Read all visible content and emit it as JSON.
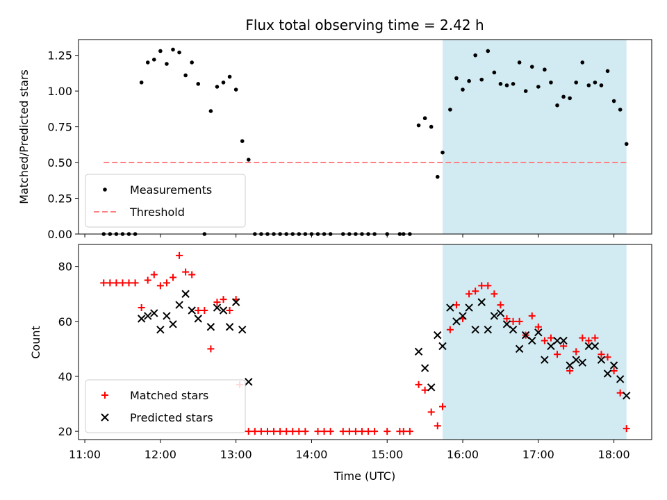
{
  "chart_data": {
    "title": "Flux total observing time = 2.42 h",
    "xlabel": "Time (UTC)",
    "x_ticks": [
      "11:00",
      "12:00",
      "13:00",
      "14:00",
      "15:00",
      "16:00",
      "17:00",
      "18:00"
    ],
    "x_range": [
      "10:55",
      "18:30"
    ],
    "highlight_span": [
      "15:44",
      "18:10"
    ],
    "colors": {
      "highlight": "#add8e6",
      "matched": "#ff0000",
      "predicted": "#000000",
      "threshold": "#ff8080"
    },
    "panels": [
      {
        "type": "scatter",
        "ylabel": "Matched/Predicted stars",
        "ylim": [
          0,
          1.36
        ],
        "y_ticks": [
          "0.00",
          "0.25",
          "0.50",
          "0.75",
          "1.00",
          "1.25"
        ],
        "y_tick_values": [
          0,
          0.25,
          0.5,
          0.75,
          1.0,
          1.25
        ],
        "legend_position": "lower-left",
        "threshold": {
          "name": "Threshold",
          "value": 0.5,
          "x_start": "11:15",
          "x_end": "18:10"
        },
        "series": [
          {
            "name": "Measurements",
            "marker": "dot",
            "points": [
              [
                "11:15",
                0
              ],
              [
                "11:20",
                0
              ],
              [
                "11:25",
                0
              ],
              [
                "11:30",
                0
              ],
              [
                "11:35",
                0
              ],
              [
                "11:40",
                0
              ],
              [
                "11:45",
                1.06
              ],
              [
                "11:50",
                1.2
              ],
              [
                "11:55",
                1.22
              ],
              [
                "12:00",
                1.28
              ],
              [
                "12:05",
                1.19
              ],
              [
                "12:10",
                1.29
              ],
              [
                "12:15",
                1.27
              ],
              [
                "12:20",
                1.11
              ],
              [
                "12:25",
                1.2
              ],
              [
                "12:30",
                1.05
              ],
              [
                "12:35",
                0
              ],
              [
                "12:40",
                0.86
              ],
              [
                "12:45",
                1.03
              ],
              [
                "12:50",
                1.06
              ],
              [
                "12:55",
                1.1
              ],
              [
                "13:00",
                1.01
              ],
              [
                "13:05",
                0.65
              ],
              [
                "13:10",
                0.52
              ],
              [
                "13:15",
                0
              ],
              [
                "13:20",
                0
              ],
              [
                "13:25",
                0
              ],
              [
                "13:30",
                0
              ],
              [
                "13:35",
                0
              ],
              [
                "13:40",
                0
              ],
              [
                "13:45",
                0
              ],
              [
                "13:50",
                0
              ],
              [
                "13:55",
                0
              ],
              [
                "14:00",
                0
              ],
              [
                "14:05",
                0
              ],
              [
                "14:10",
                0
              ],
              [
                "14:15",
                0
              ],
              [
                "14:25",
                0
              ],
              [
                "14:30",
                0
              ],
              [
                "14:35",
                0
              ],
              [
                "14:40",
                0
              ],
              [
                "14:45",
                0
              ],
              [
                "14:50",
                0
              ],
              [
                "15:00",
                0
              ],
              [
                "15:10",
                0
              ],
              [
                "15:13",
                0
              ],
              [
                "15:18",
                0
              ],
              [
                "15:25",
                0.76
              ],
              [
                "15:30",
                0.81
              ],
              [
                "15:35",
                0.75
              ],
              [
                "15:40",
                0.4
              ],
              [
                "15:44",
                0.57
              ],
              [
                "15:50",
                0.87
              ],
              [
                "15:55",
                1.09
              ],
              [
                "16:00",
                1.01
              ],
              [
                "16:05",
                1.07
              ],
              [
                "16:10",
                1.25
              ],
              [
                "16:15",
                1.08
              ],
              [
                "16:20",
                1.28
              ],
              [
                "16:25",
                1.13
              ],
              [
                "16:30",
                1.05
              ],
              [
                "16:35",
                1.04
              ],
              [
                "16:40",
                1.05
              ],
              [
                "16:45",
                1.2
              ],
              [
                "16:50",
                1.0
              ],
              [
                "16:55",
                1.17
              ],
              [
                "17:00",
                1.03
              ],
              [
                "17:05",
                1.15
              ],
              [
                "17:10",
                1.06
              ],
              [
                "17:15",
                0.9
              ],
              [
                "17:20",
                0.96
              ],
              [
                "17:25",
                0.95
              ],
              [
                "17:30",
                1.06
              ],
              [
                "17:35",
                1.2
              ],
              [
                "17:40",
                1.04
              ],
              [
                "17:45",
                1.06
              ],
              [
                "17:50",
                1.04
              ],
              [
                "17:55",
                1.14
              ],
              [
                "18:00",
                0.93
              ],
              [
                "18:05",
                0.87
              ],
              [
                "18:10",
                0.63
              ]
            ]
          }
        ]
      },
      {
        "type": "scatter",
        "ylabel": "Count",
        "ylim": [
          17,
          88
        ],
        "y_ticks": [
          "20",
          "40",
          "60",
          "80"
        ],
        "y_tick_values": [
          20,
          40,
          60,
          80
        ],
        "legend_position": "lower-left",
        "series": [
          {
            "name": "Matched stars",
            "marker": "plus",
            "points": [
              [
                "11:15",
                74
              ],
              [
                "11:20",
                74
              ],
              [
                "11:25",
                74
              ],
              [
                "11:30",
                74
              ],
              [
                "11:35",
                74
              ],
              [
                "11:40",
                74
              ],
              [
                "11:45",
                65
              ],
              [
                "11:50",
                75
              ],
              [
                "11:55",
                77
              ],
              [
                "12:00",
                73
              ],
              [
                "12:05",
                74
              ],
              [
                "12:10",
                76
              ],
              [
                "12:15",
                84
              ],
              [
                "12:20",
                78
              ],
              [
                "12:25",
                77
              ],
              [
                "12:30",
                64
              ],
              [
                "12:35",
                64
              ],
              [
                "12:40",
                50
              ],
              [
                "12:45",
                67
              ],
              [
                "12:50",
                68
              ],
              [
                "12:55",
                64
              ],
              [
                "13:00",
                68
              ],
              [
                "13:03",
                37
              ],
              [
                "13:10",
                20
              ],
              [
                "13:15",
                20
              ],
              [
                "13:20",
                20
              ],
              [
                "13:25",
                20
              ],
              [
                "13:30",
                20
              ],
              [
                "13:35",
                20
              ],
              [
                "13:40",
                20
              ],
              [
                "13:45",
                20
              ],
              [
                "13:50",
                20
              ],
              [
                "13:55",
                20
              ],
              [
                "14:05",
                20
              ],
              [
                "14:10",
                20
              ],
              [
                "14:15",
                20
              ],
              [
                "14:25",
                20
              ],
              [
                "14:30",
                20
              ],
              [
                "14:35",
                20
              ],
              [
                "14:40",
                20
              ],
              [
                "14:45",
                20
              ],
              [
                "14:50",
                20
              ],
              [
                "15:00",
                20
              ],
              [
                "15:10",
                20
              ],
              [
                "15:13",
                20
              ],
              [
                "15:18",
                20
              ],
              [
                "15:25",
                37
              ],
              [
                "15:30",
                35
              ],
              [
                "15:35",
                27
              ],
              [
                "15:40",
                22
              ],
              [
                "15:44",
                29
              ],
              [
                "15:50",
                57
              ],
              [
                "15:55",
                66
              ],
              [
                "16:00",
                61
              ],
              [
                "16:05",
                70
              ],
              [
                "16:10",
                71
              ],
              [
                "16:15",
                73
              ],
              [
                "16:20",
                73
              ],
              [
                "16:25",
                70
              ],
              [
                "16:30",
                66
              ],
              [
                "16:35",
                61
              ],
              [
                "16:40",
                60
              ],
              [
                "16:45",
                60
              ],
              [
                "16:50",
                55
              ],
              [
                "16:55",
                62
              ],
              [
                "17:00",
                58
              ],
              [
                "17:05",
                53
              ],
              [
                "17:10",
                54
              ],
              [
                "17:15",
                48
              ],
              [
                "17:20",
                51
              ],
              [
                "17:25",
                42
              ],
              [
                "17:30",
                49
              ],
              [
                "17:35",
                54
              ],
              [
                "17:40",
                53
              ],
              [
                "17:45",
                54
              ],
              [
                "17:50",
                48
              ],
              [
                "17:55",
                47
              ],
              [
                "18:00",
                42
              ],
              [
                "18:05",
                34
              ],
              [
                "18:10",
                21
              ]
            ]
          },
          {
            "name": "Predicted stars",
            "marker": "x",
            "points": [
              [
                "11:45",
                61
              ],
              [
                "11:50",
                62
              ],
              [
                "11:55",
                63
              ],
              [
                "12:00",
                57
              ],
              [
                "12:05",
                62
              ],
              [
                "12:10",
                59
              ],
              [
                "12:15",
                66
              ],
              [
                "12:20",
                70
              ],
              [
                "12:25",
                64
              ],
              [
                "12:30",
                61
              ],
              [
                "12:40",
                58
              ],
              [
                "12:45",
                65
              ],
              [
                "12:50",
                64
              ],
              [
                "12:55",
                58
              ],
              [
                "13:00",
                67
              ],
              [
                "13:05",
                57
              ],
              [
                "13:10",
                38
              ],
              [
                "15:25",
                49
              ],
              [
                "15:30",
                43
              ],
              [
                "15:35",
                36
              ],
              [
                "15:40",
                55
              ],
              [
                "15:44",
                51
              ],
              [
                "15:50",
                65
              ],
              [
                "15:55",
                60
              ],
              [
                "16:00",
                62
              ],
              [
                "16:05",
                65
              ],
              [
                "16:10",
                57
              ],
              [
                "16:15",
                67
              ],
              [
                "16:20",
                57
              ],
              [
                "16:25",
                62
              ],
              [
                "16:30",
                63
              ],
              [
                "16:35",
                59
              ],
              [
                "16:40",
                57
              ],
              [
                "16:45",
                50
              ],
              [
                "16:50",
                55
              ],
              [
                "16:55",
                53
              ],
              [
                "17:00",
                56
              ],
              [
                "17:05",
                46
              ],
              [
                "17:10",
                51
              ],
              [
                "17:15",
                53
              ],
              [
                "17:20",
                53
              ],
              [
                "17:25",
                44
              ],
              [
                "17:30",
                46
              ],
              [
                "17:35",
                45
              ],
              [
                "17:40",
                51
              ],
              [
                "17:45",
                51
              ],
              [
                "17:50",
                46
              ],
              [
                "17:55",
                41
              ],
              [
                "18:00",
                44
              ],
              [
                "18:05",
                39
              ],
              [
                "18:10",
                33
              ]
            ]
          }
        ]
      }
    ]
  }
}
